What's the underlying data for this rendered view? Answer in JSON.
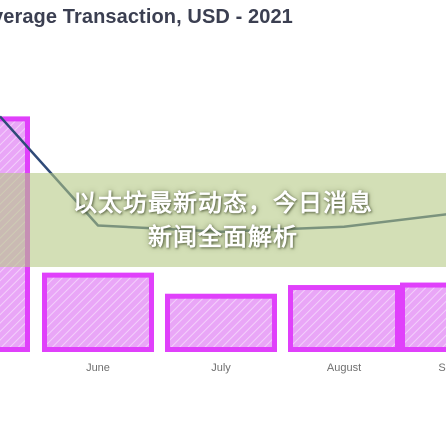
{
  "chart_data": {
    "type": "bar",
    "title": "verage Transaction, USD - 2021",
    "categories": [
      "",
      "June",
      "July",
      "August",
      "S"
    ],
    "series": [
      {
        "type": "bar",
        "values": [
          190,
          64,
          47,
          54,
          56
        ],
        "color": "#e040fb"
      },
      {
        "type": "line",
        "values": [
          190,
          102,
          97,
          101,
          112
        ],
        "color": "#2f4a78"
      }
    ],
    "ylim": [
      0,
      200
    ],
    "grid": false,
    "legend": "none"
  },
  "overlay": {
    "line1": "以太坊最新动态，今日消息",
    "line2": "新闻全面解析"
  }
}
